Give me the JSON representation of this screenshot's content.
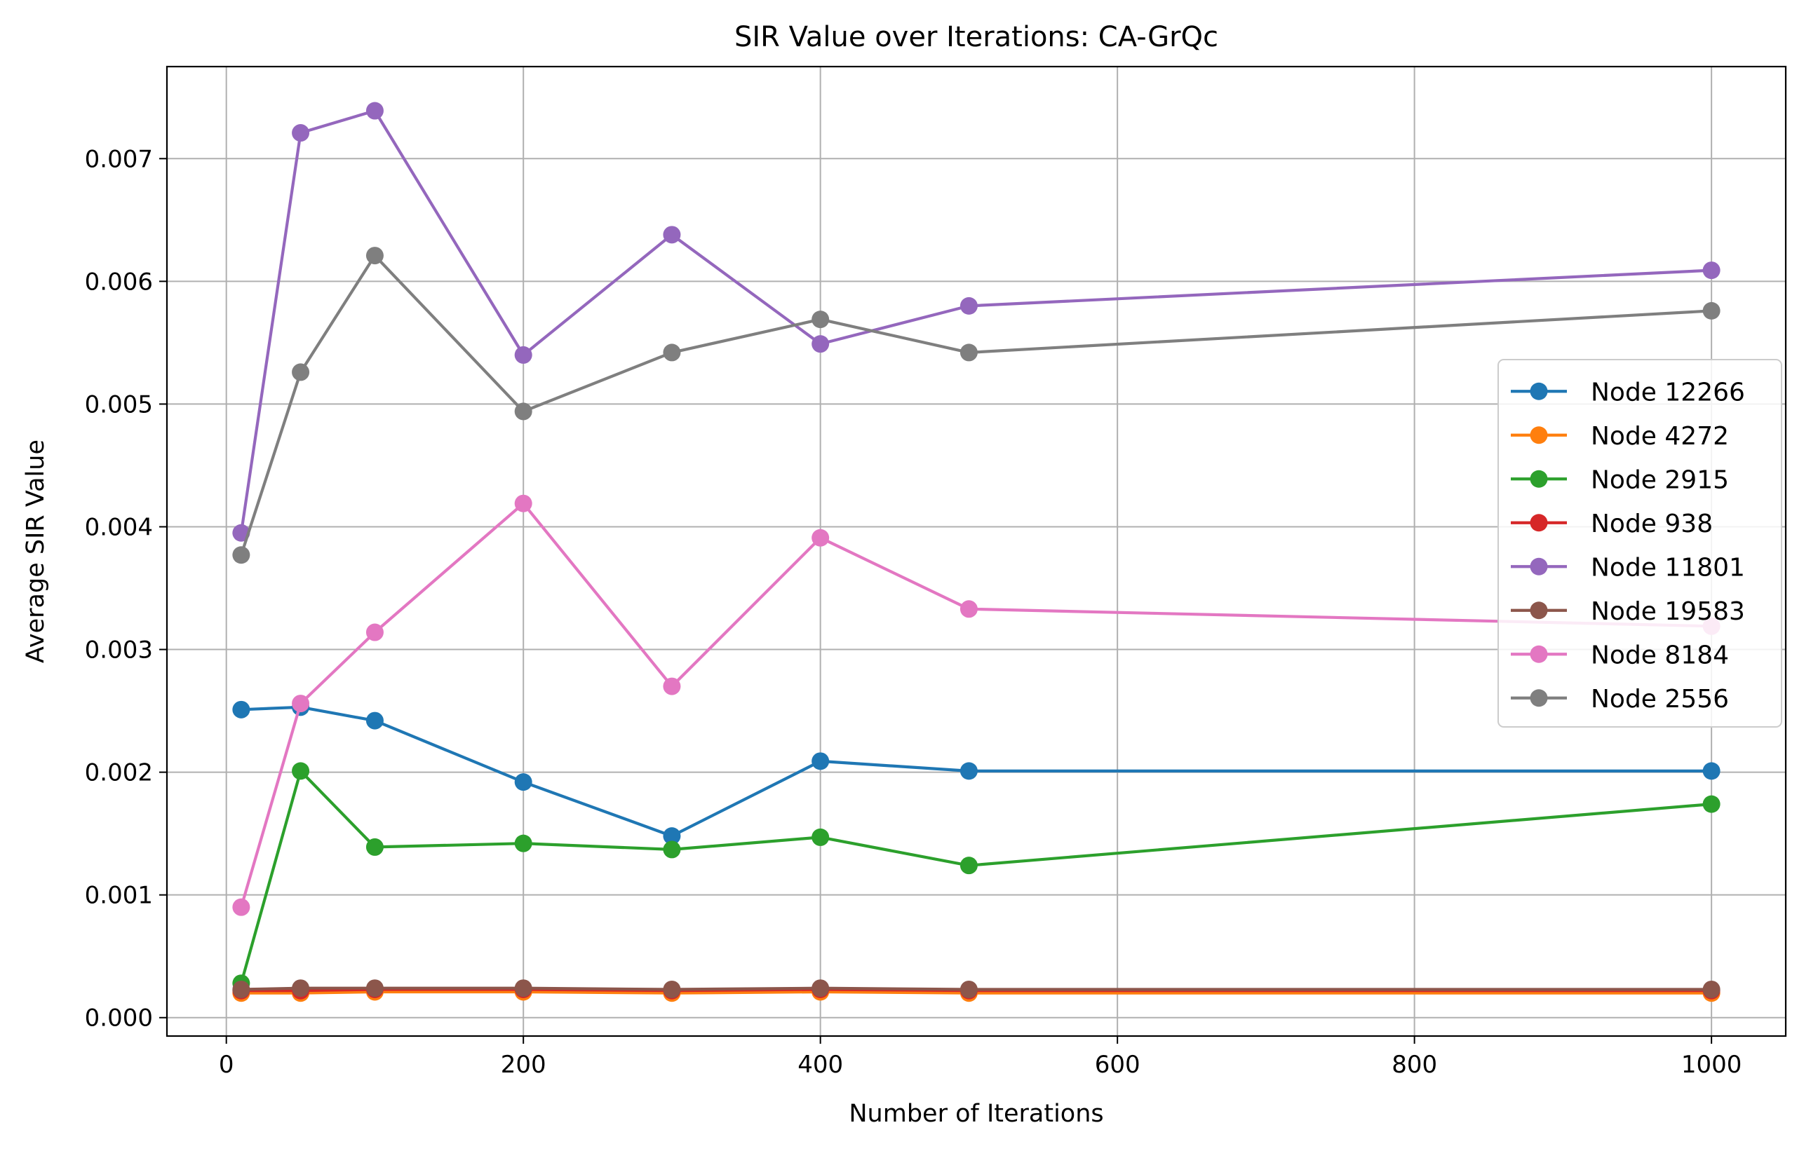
{
  "chart_data": {
    "type": "line",
    "title": "SIR Value over Iterations: CA-GrQc",
    "xlabel": "Number of Iterations",
    "ylabel": "Average SIR Value",
    "xlim": [
      -40,
      1050
    ],
    "ylim": [
      -0.00015,
      0.00775
    ],
    "xticks": [
      0,
      200,
      400,
      600,
      800,
      1000
    ],
    "xtick_labels": [
      "0",
      "200",
      "400",
      "600",
      "800",
      "1000"
    ],
    "yticks": [
      0,
      0.001,
      0.002,
      0.003,
      0.004,
      0.005,
      0.006,
      0.007
    ],
    "ytick_labels": [
      "0.000",
      "0.001",
      "0.002",
      "0.003",
      "0.004",
      "0.005",
      "0.006",
      "0.007"
    ],
    "grid": true,
    "legend_position": "center-right",
    "x": [
      10,
      50,
      100,
      200,
      300,
      400,
      500,
      1000
    ],
    "series": [
      {
        "name": "Node 12266",
        "color": "#1f77b4",
        "values": [
          0.00251,
          0.00253,
          0.00242,
          0.00192,
          0.00148,
          0.00209,
          0.00201,
          0.00201
        ]
      },
      {
        "name": "Node 4272",
        "color": "#ff7f0e",
        "values": [
          0.0002,
          0.0002,
          0.00021,
          0.00021,
          0.0002,
          0.00021,
          0.0002,
          0.0002
        ]
      },
      {
        "name": "Node 2915",
        "color": "#2ca02c",
        "values": [
          0.00028,
          0.00201,
          0.00139,
          0.00142,
          0.00137,
          0.00147,
          0.00124,
          0.00174
        ]
      },
      {
        "name": "Node 938",
        "color": "#d62728",
        "values": [
          0.00022,
          0.00022,
          0.00023,
          0.00023,
          0.00022,
          0.00023,
          0.00022,
          0.00022
        ]
      },
      {
        "name": "Node 11801",
        "color": "#9467bd",
        "values": [
          0.00395,
          0.00721,
          0.00739,
          0.0054,
          0.00638,
          0.00549,
          0.0058,
          0.00609
        ]
      },
      {
        "name": "Node 19583",
        "color": "#8c564b",
        "values": [
          0.00023,
          0.00024,
          0.00024,
          0.00024,
          0.00023,
          0.00024,
          0.00023,
          0.00023
        ]
      },
      {
        "name": "Node 8184",
        "color": "#e377c2",
        "values": [
          0.0009,
          0.00256,
          0.00314,
          0.00419,
          0.0027,
          0.00391,
          0.00333,
          0.00319
        ]
      },
      {
        "name": "Node 2556",
        "color": "#7f7f7f",
        "values": [
          0.00377,
          0.00526,
          0.00621,
          0.00494,
          0.00542,
          0.00569,
          0.00542,
          0.00576
        ]
      }
    ]
  }
}
